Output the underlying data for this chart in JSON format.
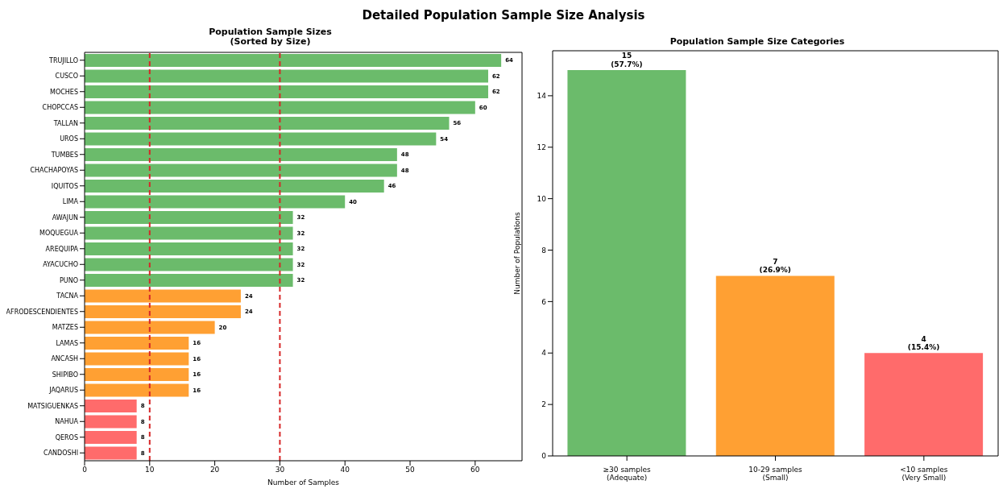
{
  "chart_data": [
    {
      "type": "bar",
      "orientation": "horizontal",
      "title": "Population Sample Sizes\n(Sorted by Size)",
      "annotations": [
        "Detailed Population Sample Size Analysis"
      ],
      "xlabel": "Number of Samples",
      "categories": [
        "TRUJILLO",
        "CUSCO",
        "MOCHES",
        "CHOPCCAS",
        "TALLAN",
        "UROS",
        "TUMBES",
        "CHACHAPOYAS",
        "IQUITOS",
        "LIMA",
        "AWAJUN",
        "MOQUEGUA",
        "AREQUIPA",
        "AYACUCHO",
        "PUNO",
        "TACNA",
        "AFRODESCENDIENTES",
        "MATZES",
        "LAMAS",
        "ANCASH",
        "SHIPIBO",
        "JAQARUS",
        "MATSIGUENKAS",
        "NAHUA",
        "QEROS",
        "CANDOSHI"
      ],
      "values": [
        64,
        62,
        62,
        60,
        56,
        54,
        48,
        48,
        46,
        40,
        32,
        32,
        32,
        32,
        32,
        24,
        24,
        20,
        16,
        16,
        16,
        16,
        8,
        8,
        8,
        8
      ],
      "colors": [
        "#6bbb6b",
        "#6bbb6b",
        "#6bbb6b",
        "#6bbb6b",
        "#6bbb6b",
        "#6bbb6b",
        "#6bbb6b",
        "#6bbb6b",
        "#6bbb6b",
        "#6bbb6b",
        "#6bbb6b",
        "#6bbb6b",
        "#6bbb6b",
        "#6bbb6b",
        "#6bbb6b",
        "#ffa033",
        "#ffa033",
        "#ffa033",
        "#ffa033",
        "#ffa033",
        "#ffa033",
        "#ffa033",
        "#ff6b6b",
        "#ff6b6b",
        "#ff6b6b",
        "#ff6b6b"
      ],
      "xlim": [
        0,
        67.2
      ],
      "xticks": [
        0,
        10,
        20,
        30,
        40,
        50,
        60
      ],
      "data_labels": true,
      "ref_lines": [
        {
          "axis": "x",
          "value": 10,
          "color": "#d62728",
          "line_style": "dashed"
        },
        {
          "axis": "x",
          "value": 30,
          "color": "#d62728",
          "line_style": "dashed"
        }
      ]
    },
    {
      "type": "bar",
      "title": "Population Sample Size Categories",
      "ylabel": "Number of Populations",
      "categories": [
        "≥30 samples\n(Adequate)",
        "10-29 samples\n(Small)",
        "<10 samples\n(Very Small)"
      ],
      "values": [
        15,
        7,
        4
      ],
      "colors": [
        "#6bbb6b",
        "#ffa033",
        "#ff6b6b"
      ],
      "value_labels": [
        "15\n(57.7%)",
        "7\n(26.9%)",
        "4\n(15.4%)"
      ],
      "ylim": [
        0,
        15.75
      ],
      "yticks": [
        0,
        2,
        4,
        6,
        8,
        10,
        12,
        14
      ]
    }
  ]
}
